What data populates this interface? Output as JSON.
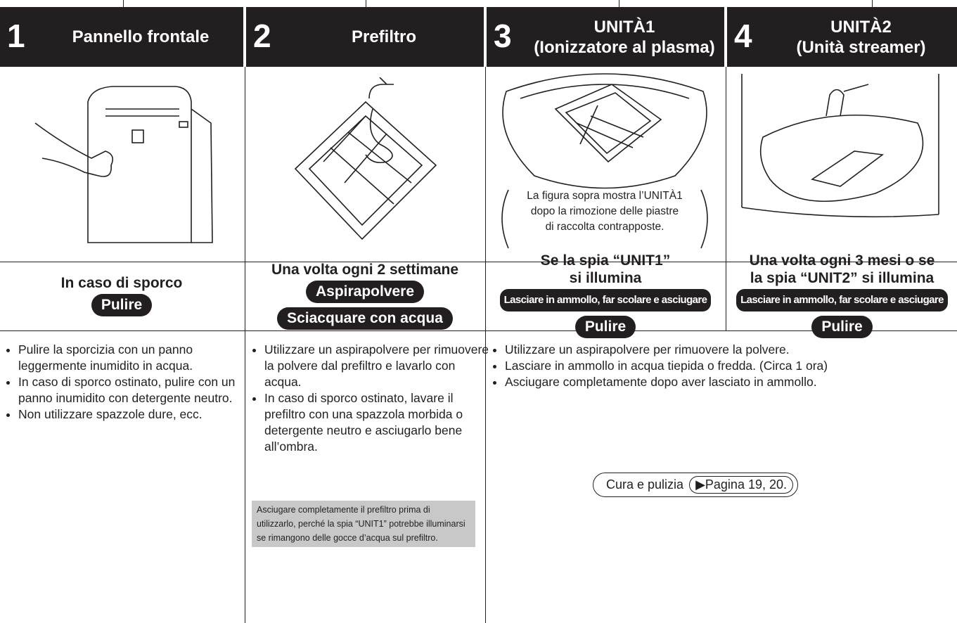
{
  "columns": [
    {
      "number": "1",
      "title": [
        "Pannello frontale"
      ],
      "frequency": [
        "In caso di sporco"
      ],
      "actions": [
        "Pulire"
      ]
    },
    {
      "number": "2",
      "title": [
        "Prefiltro"
      ],
      "frequency": [
        "Una volta ogni 2 settimane"
      ],
      "actions": [
        "Aspirapolvere",
        "Sciacquare con acqua"
      ]
    },
    {
      "number": "3",
      "title": [
        "UNITÀ1",
        "(Ionizzatore al plasma)"
      ],
      "frequency": [
        "Se la spia “UNIT1”",
        "si illumina"
      ],
      "actions": [
        "Lasciare in ammollo, far scolare e asciugare",
        "Pulire"
      ]
    },
    {
      "number": "4",
      "title": [
        "UNITÀ2",
        "(Unità streamer)"
      ],
      "frequency": [
        "Una volta ogni 3 mesi o se",
        "la spia “UNIT2” si illumina"
      ],
      "actions": [
        "Lasciare in ammollo, far scolare e asciugare",
        "Pulire"
      ]
    }
  ],
  "image_caption": [
    "La figura sopra mostra l’UNITÀ1",
    "dopo la rimozione delle piastre",
    "di raccolta contrapposte."
  ],
  "descriptions": {
    "panel": [
      "Pulire la sporcizia con un panno leggermente inumidito in acqua.",
      "In caso di sporco ostinato, pulire con un panno inumidito con detergente neutro.",
      "Non utilizzare spazzole dure, ecc."
    ],
    "prefilter": [
      "Utilizzare un aspirapolvere per rimuovere la polvere dal prefiltro e lavarlo con acqua.",
      "In caso di sporco ostinato, lavare il prefiltro con una spazzola morbida o detergente neutro e asciugarlo bene all’ombra."
    ],
    "note": "Asciugare completamente il prefiltro prima di utilizzarlo, perché la spia “UNIT1” potrebbe illuminarsi se rimangono delle gocce d’acqua sul prefiltro.",
    "units": [
      "Utilizzare un aspirapolvere per rimuovere la polvere.",
      "Lasciare in ammollo in acqua tiepida o fredda. (Circa 1 ora)",
      "Asciugare completamente dopo aver lasciato in ammollo."
    ],
    "reference": {
      "text": "Cura e pulizia",
      "link": "▶Pagina 19, 20."
    }
  }
}
